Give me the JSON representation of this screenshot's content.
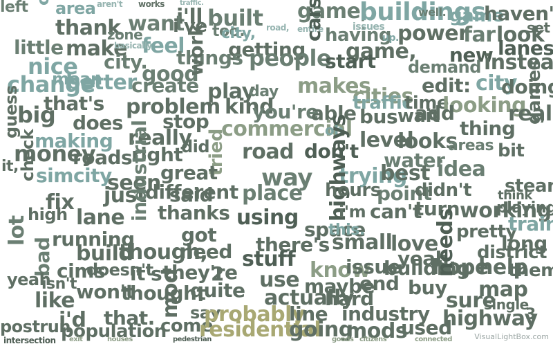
{
  "cloud": {
    "watermark": "VisualLightBox.com",
    "words": [
      "left",
      "area",
      "aren't",
      "works",
      "traffic.",
      "i'll",
      "built",
      "game,",
      "buildings",
      "well.",
      "game",
      "haven't",
      "click",
      "thank",
      "want",
      "i've",
      "too.",
      "city,",
      "road,",
      "entire",
      "power",
      "far",
      "look",
      "set",
      "little",
      "make",
      "zone",
      "feel",
      "getting",
      "cars",
      "having",
      "issues",
      "up.",
      "game,",
      "new",
      "lanes",
      "nice",
      "mean",
      "city.",
      "basically",
      "things",
      "people",
      "start",
      "demand",
      "instead",
      "change",
      "better",
      "good",
      "create",
      "play",
      "day",
      "makes",
      "cities",
      "edit:",
      "city",
      "doing",
      "that's",
      "problem",
      "work",
      "kind",
      "you're",
      "able",
      "traffic",
      "time",
      "looking",
      "real",
      "big",
      "does",
      "stop",
      "commercial",
      "oh",
      "bus",
      "wait",
      "add",
      "thing",
      "guess",
      "making",
      "really",
      "did",
      "road",
      "don't",
      "level",
      "looks",
      "areas",
      "bit",
      "games",
      "money",
      "roads",
      "right",
      "tried",
      "way",
      "water",
      "idea",
      "it,",
      "check",
      "simcity",
      "seen",
      "great",
      "place",
      "trying",
      "best",
      "point",
      "didn't",
      "steam",
      "think",
      "fix",
      "just",
      "said",
      "highways",
      "hours",
      "high",
      "lane",
      "industrial",
      "thanks",
      "using",
      "i'm",
      "can't",
      "turn",
      "working",
      "playing",
      "lot",
      "running",
      "different",
      "got",
      "space",
      "this.",
      "pretty",
      "train",
      "bad",
      "build",
      "though,",
      "need",
      "there's",
      "small",
      "love",
      "long",
      "cims",
      "they're",
      "stuff",
      "yeah,",
      "district",
      "them.",
      "doesn't",
      "it's",
      "2",
      "know",
      "use",
      "issue",
      "building",
      "hope",
      "help",
      "yeah",
      "isn't",
      "won't",
      "thought",
      "quite",
      "maybe",
      "end",
      "buy",
      "like",
      "mod",
      "say",
      "actually",
      "hard",
      "needs",
      "sure",
      "map",
      "i'd",
      "that.",
      "come",
      "probably",
      "line",
      "industry",
      "single",
      "highway",
      "postrun",
      "population",
      "residential",
      "going",
      "mods",
      "used",
      "3",
      "intersection",
      "pedestrian",
      "citizens",
      "connected",
      "goods",
      "houses",
      "exit"
    ]
  }
}
